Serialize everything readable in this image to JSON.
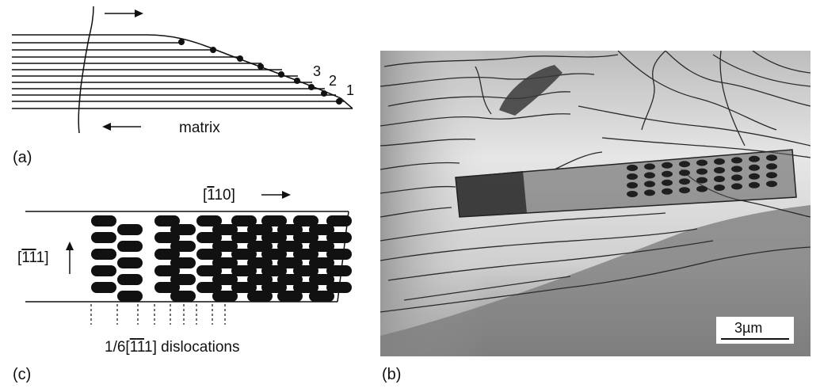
{
  "panels": {
    "a": {
      "label": "(a)",
      "matrix_label": "matrix",
      "layer_numbers": [
        "3",
        "2",
        "1"
      ]
    },
    "c": {
      "label": "(c)",
      "direction_110": {
        "open": "[",
        "bar": "1",
        "rest": "10]"
      },
      "direction_111": {
        "open": "[",
        "bar1": "1",
        "bar2": "1",
        "rest": "1]"
      },
      "dislocation_caption": {
        "prefix": "1/6[",
        "bar1": "1",
        "bar2": "1",
        "rest": "1] dislocations"
      }
    },
    "b": {
      "label": "(b)",
      "scale_bar": "3µm"
    }
  },
  "colors": {
    "ink": "#111111",
    "micrograph_light": "#d9d9d9",
    "micrograph_dark": "#6b6b6b"
  }
}
